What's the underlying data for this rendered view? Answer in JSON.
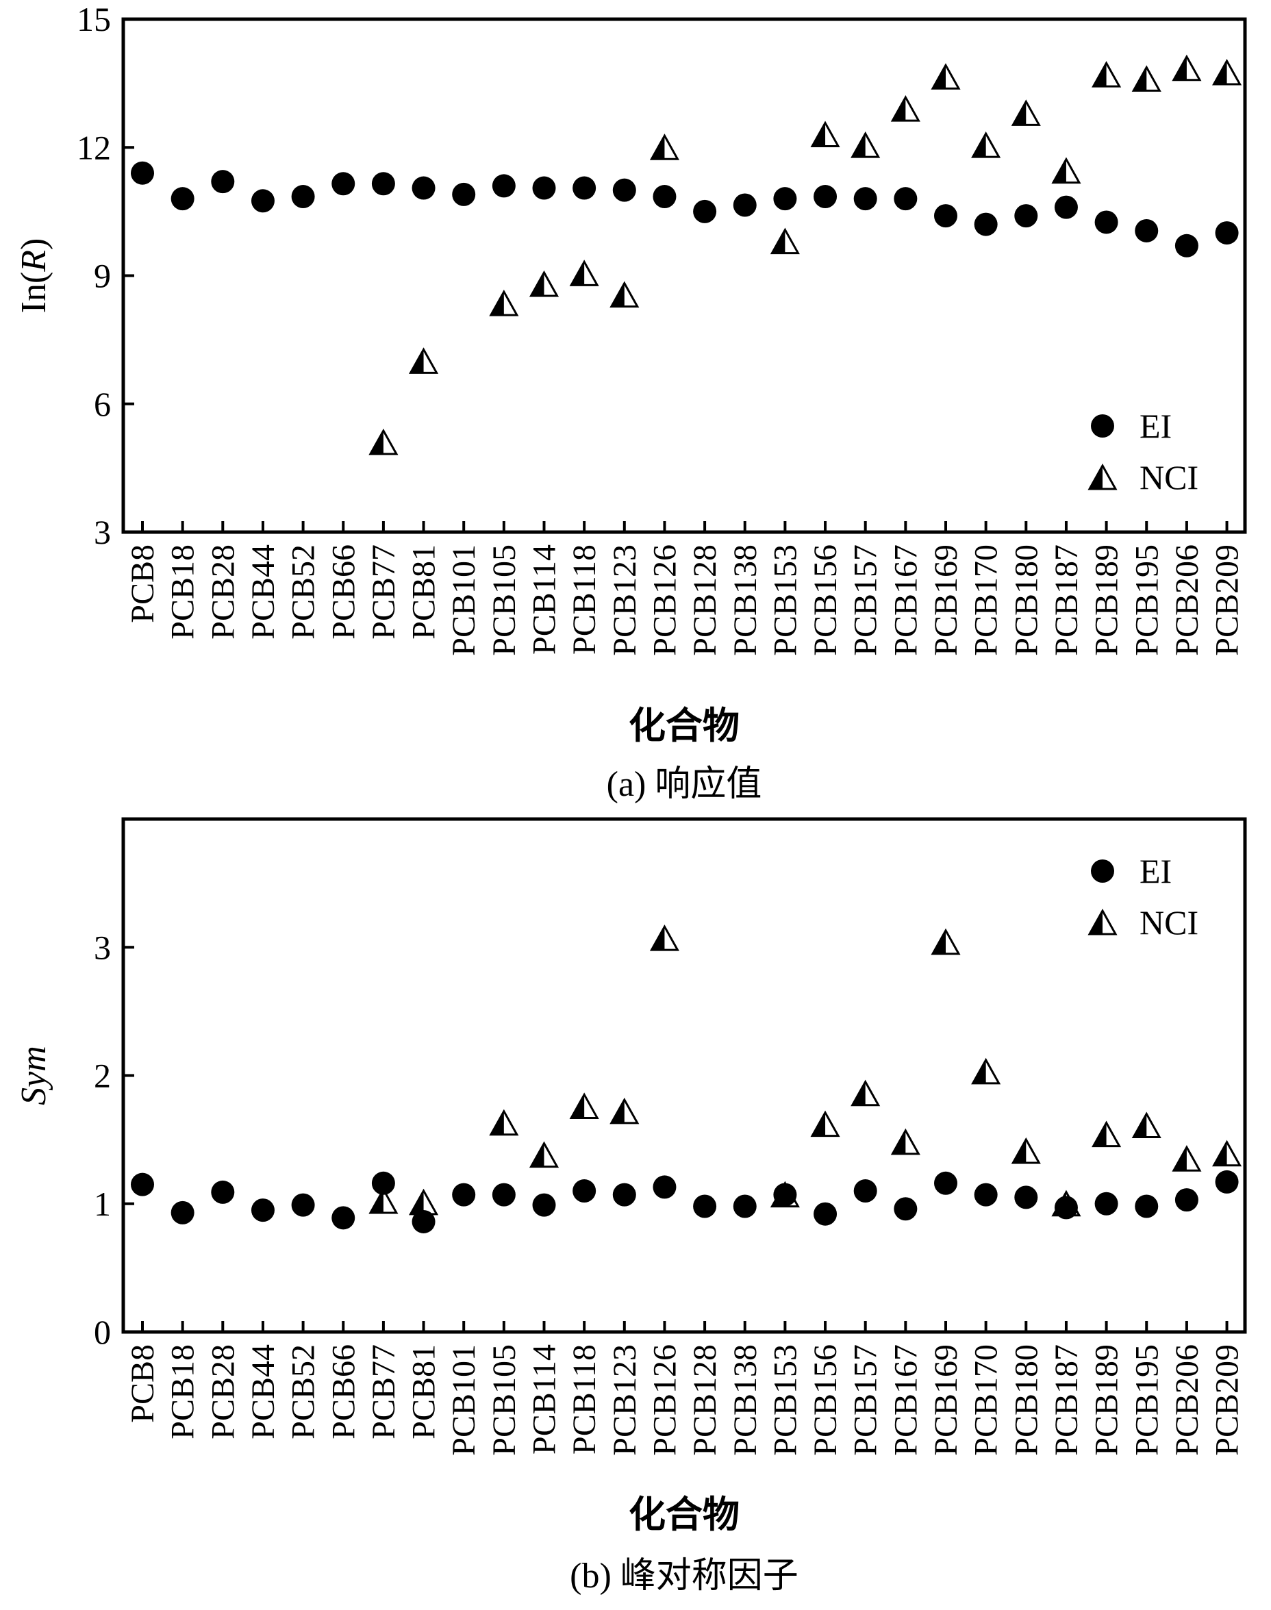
{
  "chart_data": [
    {
      "type": "scatter",
      "caption": "(a) 响应值",
      "xlabel": "化合物",
      "ylabel_prefix": "In(",
      "ylabel_italic": "R",
      "ylabel_suffix": ")",
      "ylim": [
        3,
        15
      ],
      "yticks": [
        3,
        6,
        9,
        12,
        15
      ],
      "categories": [
        "PCB8",
        "PCB18",
        "PCB28",
        "PCB44",
        "PCB52",
        "PCB66",
        "PCB77",
        "PCB81",
        "PCB101",
        "PCB105",
        "PCB114",
        "PCB118",
        "PCB123",
        "PCB126",
        "PCB128",
        "PCB138",
        "PCB153",
        "PCB156",
        "PCB157",
        "PCB167",
        "PCB169",
        "PCB170",
        "PCB180",
        "PCB187",
        "PCB189",
        "PCB195",
        "PCB206",
        "PCB209"
      ],
      "legend_position": "bottom-right",
      "series": [
        {
          "name": "EI",
          "marker": "circle",
          "values": [
            11.4,
            10.8,
            11.2,
            10.75,
            10.85,
            11.15,
            11.15,
            11.05,
            10.9,
            11.1,
            11.05,
            11.05,
            11.0,
            10.85,
            10.5,
            10.65,
            10.8,
            10.85,
            10.8,
            10.8,
            10.4,
            10.2,
            10.4,
            10.6,
            10.25,
            10.05,
            9.7,
            10.0
          ]
        },
        {
          "name": "NCI",
          "marker": "half-filled-triangle",
          "values": [
            null,
            null,
            null,
            null,
            null,
            null,
            5.1,
            7.0,
            null,
            8.35,
            8.8,
            9.05,
            8.55,
            12.0,
            null,
            null,
            9.8,
            12.3,
            12.05,
            12.9,
            13.65,
            12.05,
            12.8,
            11.45,
            13.7,
            13.6,
            13.85,
            13.75
          ]
        }
      ]
    },
    {
      "type": "scatter",
      "caption": "(b) 峰对称因子",
      "xlabel": "化合物",
      "ylabel_italic": "Sym",
      "ylim": [
        0,
        4
      ],
      "yticks": [
        0,
        1,
        2,
        3
      ],
      "categories": [
        "PCB8",
        "PCB18",
        "PCB28",
        "PCB44",
        "PCB52",
        "PCB66",
        "PCB77",
        "PCB81",
        "PCB101",
        "PCB105",
        "PCB114",
        "PCB118",
        "PCB123",
        "PCB126",
        "PCB128",
        "PCB138",
        "PCB153",
        "PCB156",
        "PCB157",
        "PCB167",
        "PCB169",
        "PCB170",
        "PCB180",
        "PCB187",
        "PCB189",
        "PCB195",
        "PCB206",
        "PCB209"
      ],
      "legend_position": "top-right",
      "series": [
        {
          "name": "EI",
          "marker": "circle",
          "values": [
            1.15,
            0.93,
            1.09,
            0.95,
            0.99,
            0.89,
            1.16,
            0.86,
            1.07,
            1.07,
            0.99,
            1.1,
            1.07,
            1.13,
            0.98,
            0.98,
            1.07,
            0.92,
            1.1,
            0.96,
            1.16,
            1.07,
            1.05,
            0.97,
            1.0,
            0.98,
            1.03,
            1.17
          ]
        },
        {
          "name": "NCI",
          "marker": "half-filled-triangle",
          "values": [
            null,
            null,
            null,
            null,
            null,
            null,
            1.02,
            1.01,
            null,
            1.63,
            1.38,
            1.76,
            1.72,
            3.07,
            null,
            null,
            1.07,
            1.62,
            1.86,
            1.48,
            3.04,
            2.03,
            1.41,
            1.0,
            1.54,
            1.61,
            1.35,
            1.39
          ]
        }
      ]
    }
  ]
}
